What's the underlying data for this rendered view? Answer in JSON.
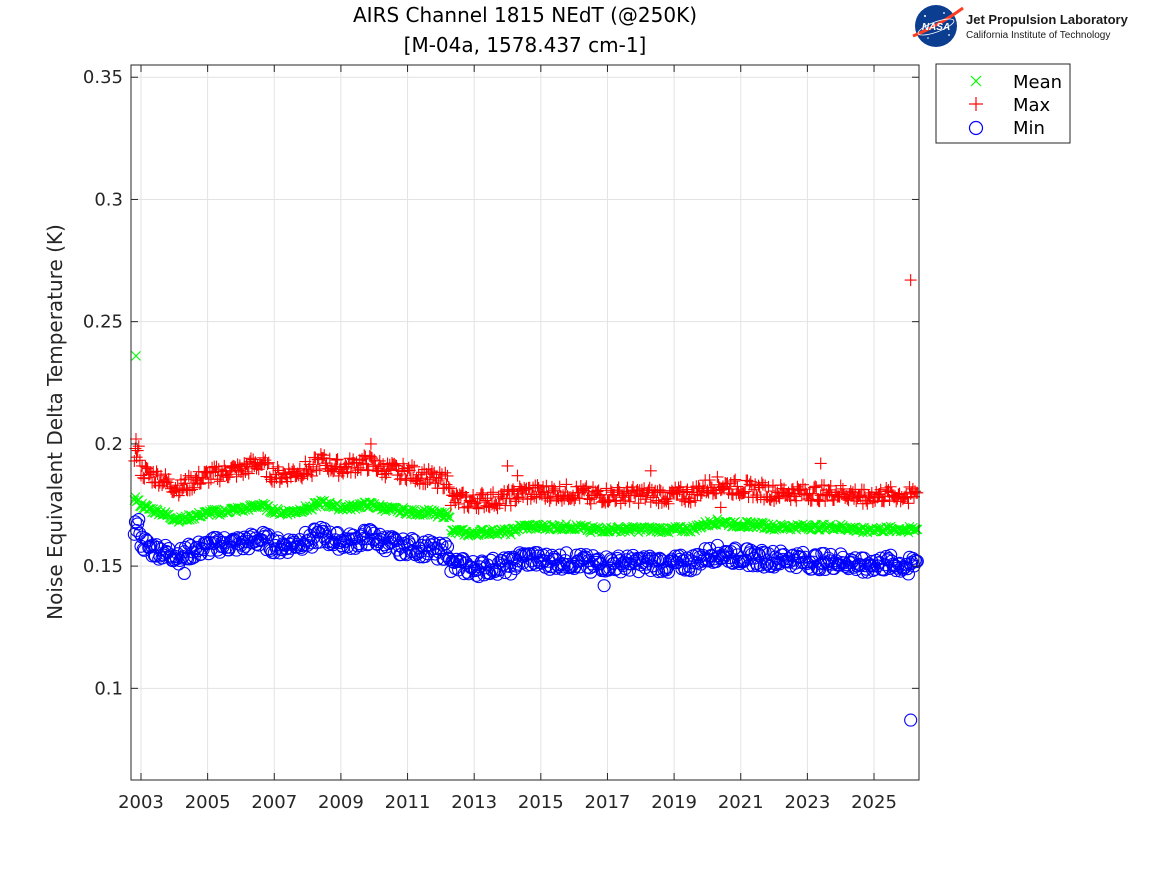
{
  "chart_data": {
    "type": "scatter",
    "title": "AIRS Channel 1815 NEdT (@250K)",
    "subtitle": "[M-04a, 1578.437 cm-1]",
    "ylabel": "Noise Equivalent Delta Temperature (K)",
    "xlabel": "",
    "xlim": [
      2002.7,
      2026.35
    ],
    "ylim": [
      0.0625,
      0.355
    ],
    "x_ticks": [
      2003,
      2005,
      2007,
      2009,
      2011,
      2013,
      2015,
      2017,
      2019,
      2021,
      2023,
      2025
    ],
    "x_tick_labels": [
      "2003",
      "2005",
      "2007",
      "2009",
      "2011",
      "2013",
      "2015",
      "2017",
      "2019",
      "2021",
      "2023",
      "2025"
    ],
    "y_ticks": [
      0.1,
      0.15,
      0.2,
      0.25,
      0.3,
      0.35
    ],
    "y_tick_labels": [
      "0.1",
      "0.15",
      "0.2",
      "0.25",
      "0.3",
      "0.35"
    ],
    "grid": true,
    "legend_position": "outside-top-right",
    "series": [
      {
        "name": "Mean",
        "marker": "x",
        "color": "#00ff00",
        "x": [
          2002.8,
          2003.0,
          2003.3,
          2003.6,
          2003.9,
          2004.2,
          2004.5,
          2004.8,
          2005.1,
          2005.4,
          2005.7,
          2006.0,
          2006.3,
          2006.6,
          2006.9,
          2007.2,
          2007.5,
          2007.8,
          2008.1,
          2008.4,
          2008.7,
          2009.0,
          2009.3,
          2009.6,
          2009.9,
          2010.2,
          2010.5,
          2010.8,
          2011.1,
          2011.4,
          2011.7,
          2012.0,
          2012.3,
          2012.6,
          2012.9,
          2013.2,
          2013.5,
          2013.8,
          2014.1,
          2014.4,
          2014.7,
          2015.0,
          2015.5,
          2016.0,
          2016.5,
          2017.0,
          2017.5,
          2018.0,
          2018.5,
          2019.0,
          2019.5,
          2019.9,
          2020.2,
          2020.5,
          2020.8,
          2021.1,
          2021.5,
          2022.0,
          2022.5,
          2023.0,
          2023.5,
          2024.0,
          2024.5,
          2025.0,
          2025.5,
          2026.0,
          2026.3,
          2002.85
        ],
        "y": [
          0.178,
          0.175,
          0.173,
          0.172,
          0.17,
          0.169,
          0.17,
          0.171,
          0.172,
          0.172,
          0.173,
          0.173,
          0.174,
          0.175,
          0.173,
          0.172,
          0.172,
          0.173,
          0.174,
          0.176,
          0.175,
          0.174,
          0.174,
          0.175,
          0.175,
          0.174,
          0.173,
          0.173,
          0.172,
          0.172,
          0.172,
          0.171,
          0.164,
          0.164,
          0.163,
          0.164,
          0.164,
          0.164,
          0.164,
          0.166,
          0.166,
          0.166,
          0.166,
          0.166,
          0.165,
          0.165,
          0.165,
          0.165,
          0.165,
          0.165,
          0.165,
          0.167,
          0.168,
          0.168,
          0.167,
          0.167,
          0.167,
          0.166,
          0.166,
          0.166,
          0.166,
          0.166,
          0.165,
          0.165,
          0.165,
          0.165,
          0.165,
          0.236
        ]
      },
      {
        "name": "Max",
        "marker": "+",
        "color": "#ff0000",
        "x": [
          2002.8,
          2003.0,
          2003.3,
          2003.6,
          2003.9,
          2004.2,
          2004.5,
          2004.8,
          2005.1,
          2005.4,
          2005.7,
          2006.0,
          2006.3,
          2006.6,
          2006.9,
          2007.2,
          2007.5,
          2007.8,
          2008.1,
          2008.4,
          2008.7,
          2009.0,
          2009.3,
          2009.6,
          2009.9,
          2010.2,
          2010.5,
          2010.8,
          2011.1,
          2011.4,
          2011.7,
          2012.0,
          2012.3,
          2012.6,
          2012.9,
          2013.2,
          2013.5,
          2013.8,
          2014.1,
          2014.4,
          2014.7,
          2015.0,
          2015.5,
          2016.0,
          2016.5,
          2017.0,
          2017.5,
          2018.0,
          2018.5,
          2019.0,
          2019.5,
          2019.9,
          2020.2,
          2020.5,
          2020.8,
          2021.1,
          2021.5,
          2022.0,
          2022.5,
          2023.0,
          2023.5,
          2024.0,
          2024.5,
          2025.0,
          2025.5,
          2026.0,
          2026.3,
          2002.85,
          2009.9,
          2014.0,
          2014.3,
          2018.3,
          2023.4,
          2026.1,
          2020.4
        ],
        "y": [
          0.196,
          0.189,
          0.187,
          0.186,
          0.183,
          0.182,
          0.184,
          0.186,
          0.187,
          0.188,
          0.189,
          0.189,
          0.191,
          0.192,
          0.188,
          0.187,
          0.188,
          0.189,
          0.19,
          0.193,
          0.191,
          0.19,
          0.191,
          0.192,
          0.192,
          0.19,
          0.189,
          0.189,
          0.188,
          0.187,
          0.186,
          0.185,
          0.177,
          0.177,
          0.176,
          0.177,
          0.177,
          0.177,
          0.178,
          0.18,
          0.18,
          0.18,
          0.18,
          0.18,
          0.179,
          0.179,
          0.179,
          0.179,
          0.179,
          0.179,
          0.179,
          0.182,
          0.183,
          0.183,
          0.182,
          0.182,
          0.181,
          0.18,
          0.18,
          0.18,
          0.18,
          0.18,
          0.179,
          0.179,
          0.179,
          0.179,
          0.18,
          0.202,
          0.2,
          0.191,
          0.187,
          0.189,
          0.192,
          0.267,
          0.174
        ]
      },
      {
        "name": "Min",
        "marker": "o",
        "color": "#0000ff",
        "x": [
          2002.8,
          2003.0,
          2003.3,
          2003.6,
          2003.9,
          2004.2,
          2004.5,
          2004.8,
          2005.1,
          2005.4,
          2005.7,
          2006.0,
          2006.3,
          2006.6,
          2006.9,
          2007.2,
          2007.5,
          2007.8,
          2008.1,
          2008.4,
          2008.7,
          2009.0,
          2009.3,
          2009.6,
          2009.9,
          2010.2,
          2010.5,
          2010.8,
          2011.1,
          2011.4,
          2011.7,
          2012.0,
          2012.3,
          2012.6,
          2012.9,
          2013.2,
          2013.5,
          2013.8,
          2014.1,
          2014.4,
          2014.7,
          2015.0,
          2015.5,
          2016.0,
          2016.5,
          2017.0,
          2017.5,
          2018.0,
          2018.5,
          2019.0,
          2019.5,
          2019.9,
          2020.2,
          2020.5,
          2020.8,
          2021.1,
          2021.5,
          2022.0,
          2022.5,
          2023.0,
          2023.5,
          2024.0,
          2024.5,
          2025.0,
          2025.5,
          2026.0,
          2026.3,
          2026.1,
          2004.3,
          2016.9
        ],
        "y": [
          0.166,
          0.16,
          0.157,
          0.156,
          0.155,
          0.154,
          0.156,
          0.157,
          0.158,
          0.159,
          0.159,
          0.159,
          0.16,
          0.161,
          0.159,
          0.158,
          0.159,
          0.16,
          0.161,
          0.163,
          0.161,
          0.16,
          0.16,
          0.161,
          0.162,
          0.16,
          0.159,
          0.158,
          0.158,
          0.157,
          0.157,
          0.156,
          0.15,
          0.15,
          0.149,
          0.149,
          0.15,
          0.15,
          0.15,
          0.153,
          0.153,
          0.152,
          0.152,
          0.152,
          0.151,
          0.151,
          0.151,
          0.151,
          0.151,
          0.151,
          0.151,
          0.154,
          0.155,
          0.155,
          0.154,
          0.154,
          0.153,
          0.153,
          0.153,
          0.152,
          0.152,
          0.152,
          0.151,
          0.151,
          0.151,
          0.15,
          0.152,
          0.087,
          0.147,
          0.142
        ]
      }
    ]
  },
  "legend": {
    "items": [
      {
        "label": "Mean",
        "marker": "x",
        "color": "#00ff00"
      },
      {
        "label": "Max",
        "marker": "+",
        "color": "#ff0000"
      },
      {
        "label": "Min",
        "marker": "o",
        "color": "#0000ff"
      }
    ]
  },
  "logo": {
    "nasa": "NASA",
    "line1": "Jet Propulsion Laboratory",
    "line2": "California Institute of Technology"
  }
}
